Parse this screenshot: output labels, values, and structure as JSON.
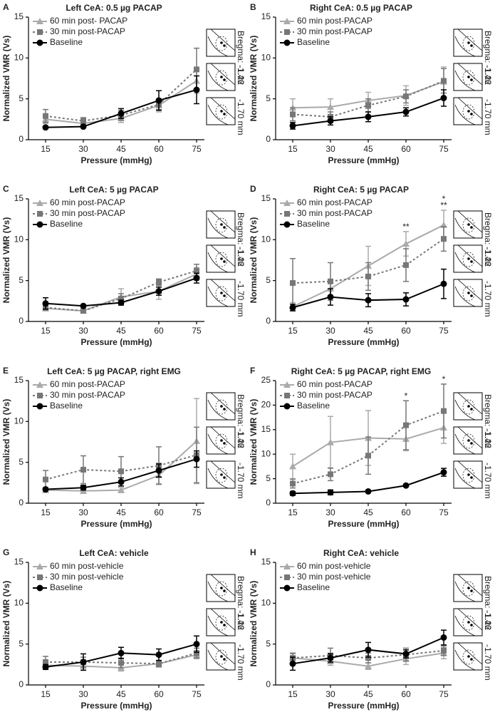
{
  "chart_data": [
    {
      "type": "line",
      "panel": "A",
      "title": "Left CeA: 0.5 µg PACAP",
      "x_label": "Pressure (mmHg)",
      "y_label": "Normalized VMR (Vs)",
      "categories": [
        15,
        30,
        45,
        60,
        75
      ],
      "ylim": [
        0,
        15
      ],
      "yticks": [
        0,
        5,
        10,
        15
      ],
      "inset_labels": [
        "Bregma: -1.22",
        "-1.46",
        "-1.70 mm"
      ],
      "annotations": [],
      "series": [
        {
          "name": "60 min post- PACAP",
          "color": "#aaaaaa",
          "style": "solid",
          "marker": "triangle",
          "values": [
            2.5,
            2.0,
            2.6,
            4.2,
            7.2
          ],
          "errors": [
            0.5,
            0.3,
            0.5,
            0.8,
            1.5
          ]
        },
        {
          "name": "30 min post-PACAP",
          "color": "#777777",
          "style": "dashed",
          "marker": "square",
          "values": [
            2.9,
            2.3,
            3.0,
            4.3,
            8.6
          ],
          "errors": [
            0.8,
            0.4,
            0.6,
            0.6,
            2.6
          ]
        },
        {
          "name": "Baseline",
          "color": "#000000",
          "style": "solid",
          "marker": "circle",
          "values": [
            1.5,
            1.6,
            3.2,
            4.8,
            6.1
          ],
          "errors": [
            0.1,
            0.1,
            0.6,
            1.2,
            1.7
          ]
        }
      ]
    },
    {
      "type": "line",
      "panel": "B",
      "title": "Right CeA: 0.5 µg PACAP",
      "x_label": "Pressure (mmHg)",
      "y_label": "Normalized VMR (Vs)",
      "categories": [
        15,
        30,
        45,
        60,
        75
      ],
      "ylim": [
        0,
        15
      ],
      "yticks": [
        0,
        5,
        10,
        15
      ],
      "inset_labels": [
        "Bregma: -1.22",
        "-1.46",
        "-1.70 mm"
      ],
      "annotations": [],
      "series": [
        {
          "name": "60 min post-PACAP",
          "color": "#aaaaaa",
          "style": "solid",
          "marker": "triangle",
          "values": [
            3.9,
            4.0,
            4.8,
            5.4,
            7.1
          ],
          "errors": [
            1.1,
            1.0,
            1.0,
            1.2,
            1.8
          ]
        },
        {
          "name": "30 min post-PACAP",
          "color": "#777777",
          "style": "dashed",
          "marker": "square",
          "values": [
            3.1,
            2.8,
            4.2,
            5.3,
            7.2
          ],
          "errors": [
            0.8,
            0.6,
            0.8,
            0.8,
            1.5
          ]
        },
        {
          "name": "Baseline",
          "color": "#000000",
          "style": "solid",
          "marker": "circle",
          "values": [
            1.7,
            2.3,
            2.8,
            3.4,
            5.1
          ],
          "errors": [
            0.4,
            0.5,
            0.6,
            0.5,
            1.0
          ]
        }
      ]
    },
    {
      "type": "line",
      "panel": "C",
      "title": "Left CeA: 5 µg PACAP",
      "x_label": "Pressure (mmHg)",
      "y_label": "Normalized VMR (Vs)",
      "categories": [
        15,
        30,
        45,
        60,
        75
      ],
      "ylim": [
        0,
        15
      ],
      "yticks": [
        0,
        5,
        10,
        15
      ],
      "inset_labels": [
        "Bregma: -1.22",
        "-1.46",
        "-1.70 mm"
      ],
      "annotations": [],
      "series": [
        {
          "name": "60 min post-PACAP",
          "color": "#aaaaaa",
          "style": "solid",
          "marker": "triangle",
          "values": [
            1.6,
            1.3,
            3.0,
            3.7,
            5.8
          ],
          "errors": [
            0.3,
            0.2,
            1.0,
            1.0,
            0.8
          ]
        },
        {
          "name": "30 min post-PACAP",
          "color": "#777777",
          "style": "dashed",
          "marker": "square",
          "values": [
            1.7,
            1.3,
            2.8,
            4.8,
            6.2
          ],
          "errors": [
            0.3,
            0.2,
            0.6,
            0.4,
            0.8
          ]
        },
        {
          "name": "Baseline",
          "color": "#000000",
          "style": "solid",
          "marker": "circle",
          "values": [
            2.2,
            1.9,
            2.3,
            3.7,
            5.3
          ],
          "errors": [
            0.7,
            0.1,
            0.3,
            0.5,
            0.6
          ]
        }
      ]
    },
    {
      "type": "line",
      "panel": "D",
      "title": "Right CeA: 5 µg PACAP",
      "x_label": "Pressure (mmHg)",
      "y_label": "Normalized VMR (Vs)",
      "categories": [
        15,
        30,
        45,
        60,
        75
      ],
      "ylim": [
        0,
        15
      ],
      "yticks": [
        0,
        5,
        10,
        15
      ],
      "inset_labels": [
        "Bregma: -1.22",
        "-1.46",
        "-1.70 mm"
      ],
      "annotations": [
        {
          "x": 60,
          "text": "**"
        },
        {
          "x": 75,
          "text": "**"
        },
        {
          "x": 75,
          "text": "*"
        }
      ],
      "series": [
        {
          "name": "60 min post-PACAP",
          "color": "#aaaaaa",
          "style": "solid",
          "marker": "triangle",
          "values": [
            1.8,
            4.0,
            6.8,
            9.5,
            11.8
          ],
          "errors": [
            0.5,
            1.0,
            2.4,
            1.5,
            1.8
          ]
        },
        {
          "name": "30 min post-PACAP",
          "color": "#777777",
          "style": "dashed",
          "marker": "square",
          "values": [
            4.7,
            4.9,
            5.5,
            6.9,
            10.1
          ],
          "errors": [
            3.0,
            2.3,
            1.7,
            2.0,
            1.5
          ]
        },
        {
          "name": "Baseline",
          "color": "#000000",
          "style": "solid",
          "marker": "circle",
          "values": [
            1.7,
            3.0,
            2.6,
            2.7,
            4.6
          ],
          "errors": [
            0.4,
            1.0,
            0.8,
            0.8,
            1.8
          ]
        }
      ]
    },
    {
      "type": "line",
      "panel": "E",
      "title": "Left CeA: 5 µg PACAP, right EMG",
      "x_label": "Pressure (mmHg)",
      "y_label": "Normalized VMR (Vs)",
      "categories": [
        15,
        30,
        45,
        60,
        75
      ],
      "ylim": [
        0,
        15
      ],
      "yticks": [
        0,
        5,
        10,
        15
      ],
      "inset_labels": [
        "Bregma: -1.22",
        "-1.46",
        "-1.70 mm"
      ],
      "annotations": [],
      "series": [
        {
          "name": "60 min post-PACAP",
          "color": "#aaaaaa",
          "style": "solid",
          "marker": "triangle",
          "values": [
            1.6,
            1.5,
            1.6,
            3.4,
            7.6
          ],
          "errors": [
            0.3,
            0.3,
            0.3,
            1.0,
            5.2
          ]
        },
        {
          "name": "30 min post-PACAP",
          "color": "#777777",
          "style": "dashed",
          "marker": "square",
          "values": [
            2.9,
            4.1,
            3.9,
            4.6,
            5.9
          ],
          "errors": [
            1.1,
            1.7,
            1.8,
            2.3,
            3.4
          ]
        },
        {
          "name": "Baseline",
          "color": "#000000",
          "style": "solid",
          "marker": "circle",
          "values": [
            1.7,
            1.9,
            2.6,
            4.0,
            5.4
          ],
          "errors": [
            0.2,
            0.3,
            0.5,
            0.8,
            1.0
          ]
        }
      ]
    },
    {
      "type": "line",
      "panel": "F",
      "title": "Right CeA: 5 µg PACAP, right EMG",
      "x_label": "Pressure (mmHg)",
      "y_label": "Normalized VMR (Vs)",
      "categories": [
        15,
        30,
        45,
        60,
        75
      ],
      "ylim": [
        0,
        25
      ],
      "yticks": [
        0,
        5,
        10,
        15,
        20,
        25
      ],
      "inset_labels": [
        "Bregma: -1.22",
        "-1.46",
        "-1.70 mm"
      ],
      "annotations": [
        {
          "x": 60,
          "text": "*"
        },
        {
          "x": 75,
          "text": "*"
        }
      ],
      "series": [
        {
          "name": "60 min post-PACAP",
          "color": "#aaaaaa",
          "style": "solid",
          "marker": "triangle",
          "values": [
            7.5,
            12.4,
            13.3,
            13.1,
            15.4
          ],
          "errors": [
            2.5,
            5.3,
            5.6,
            2.4,
            3.2
          ]
        },
        {
          "name": "30 min post-PACAP",
          "color": "#777777",
          "style": "dashed",
          "marker": "square",
          "values": [
            4.0,
            5.9,
            9.7,
            15.9,
            18.8
          ],
          "errors": [
            0.9,
            1.3,
            3.8,
            5.0,
            5.5
          ]
        },
        {
          "name": "Baseline",
          "color": "#000000",
          "style": "solid",
          "marker": "circle",
          "values": [
            2.0,
            2.2,
            2.4,
            3.6,
            6.3
          ],
          "errors": [
            0.4,
            0.5,
            0.1,
            0.2,
            0.8
          ]
        }
      ]
    },
    {
      "type": "line",
      "panel": "G",
      "title": "Left CeA: vehicle",
      "x_label": "Pressure (mmHg)",
      "y_label": "Normalized VMR (Vs)",
      "categories": [
        15,
        30,
        45,
        60,
        75
      ],
      "ylim": [
        0,
        15
      ],
      "yticks": [
        0,
        5,
        10,
        15
      ],
      "inset_labels": [
        "Bregma: -1.22",
        "-1.46",
        "-1.70 mm"
      ],
      "annotations": [],
      "series": [
        {
          "name": "60 min post-vehicle",
          "color": "#aaaaaa",
          "style": "solid",
          "marker": "triangle",
          "values": [
            2.4,
            2.3,
            2.1,
            2.6,
            3.7
          ],
          "errors": [
            0.4,
            0.5,
            0.4,
            0.4,
            0.5
          ]
        },
        {
          "name": "30 min post-vehicle",
          "color": "#777777",
          "style": "dashed",
          "marker": "square",
          "values": [
            2.8,
            2.8,
            2.7,
            2.6,
            3.9
          ],
          "errors": [
            0.7,
            0.6,
            0.6,
            0.4,
            0.6
          ]
        },
        {
          "name": "Baseline",
          "color": "#000000",
          "style": "solid",
          "marker": "circle",
          "values": [
            2.2,
            2.8,
            3.9,
            3.7,
            5.0
          ],
          "errors": [
            0.3,
            1.0,
            0.7,
            0.7,
            1.0
          ]
        }
      ]
    },
    {
      "type": "line",
      "panel": "H",
      "title": "Right CeA: vehicle",
      "x_label": "Pressure (mmHg)",
      "y_label": "Normalized VMR (Vs)",
      "categories": [
        15,
        30,
        45,
        60,
        75
      ],
      "ylim": [
        0,
        15
      ],
      "yticks": [
        0,
        5,
        10,
        15
      ],
      "inset_labels": [
        "Bregma: -1.22",
        "-1.46",
        "-1.70 mm"
      ],
      "annotations": [],
      "series": [
        {
          "name": "60 min post-vehicle",
          "color": "#aaaaaa",
          "style": "solid",
          "marker": "triangle",
          "values": [
            3.3,
            2.9,
            2.3,
            3.2,
            3.9
          ],
          "errors": [
            0.5,
            0.5,
            0.4,
            0.7,
            0.7
          ]
        },
        {
          "name": "30 min post-vehicle",
          "color": "#777777",
          "style": "dashed",
          "marker": "square",
          "values": [
            3.3,
            3.6,
            3.3,
            3.7,
            4.2
          ],
          "errors": [
            0.6,
            0.9,
            0.6,
            0.8,
            0.6
          ]
        },
        {
          "name": "Baseline",
          "color": "#000000",
          "style": "solid",
          "marker": "circle",
          "values": [
            2.6,
            3.3,
            4.3,
            3.8,
            5.8
          ],
          "errors": [
            0.8,
            0.5,
            0.9,
            0.5,
            0.9
          ]
        }
      ]
    }
  ]
}
